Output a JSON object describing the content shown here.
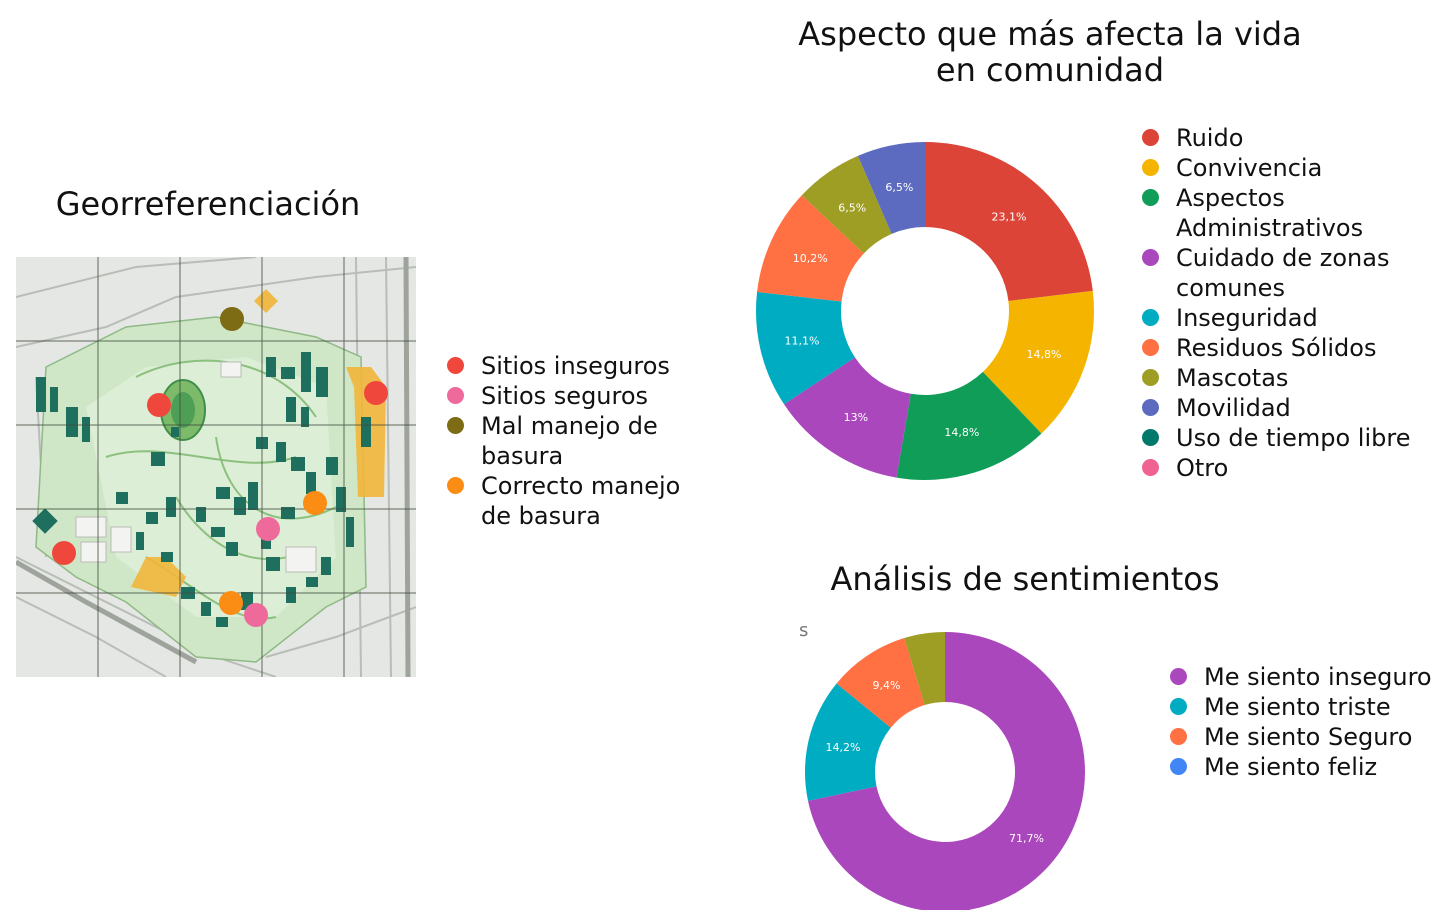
{
  "geo": {
    "title": "Georreferenciación",
    "legend": [
      {
        "label": "Sitios inseguros",
        "color": "#f0473c"
      },
      {
        "label": "Sitios seguros",
        "color": "#ee6a9a"
      },
      {
        "label": "Mal manejo de basura",
        "color": "#7e6c14"
      },
      {
        "label": "Correcto manejo de basura",
        "color": "#fb8c14"
      }
    ]
  },
  "stray_mark": "s",
  "chart_data": [
    {
      "type": "pie",
      "title": "Aspecto que más afecta la vida en comunidad",
      "legend_position": "right",
      "series": [
        {
          "name": "Ruido",
          "value": 23.1,
          "label": "23,1%",
          "color": "#db4437"
        },
        {
          "name": "Convivencia",
          "value": 14.8,
          "label": "14,8%",
          "color": "#f4b400"
        },
        {
          "name": "Aspectos Administrativos",
          "value": 14.8,
          "label": "14,8%",
          "color": "#0f9d58"
        },
        {
          "name": "Cuidado de zonas comunes",
          "value": 13,
          "label": "13%",
          "color": "#ab47bc"
        },
        {
          "name": "Inseguridad",
          "value": 11.1,
          "label": "11,1%",
          "color": "#00acc1"
        },
        {
          "name": "Residuos Sólidos",
          "value": 10.2,
          "label": "10,2%",
          "color": "#ff7043"
        },
        {
          "name": "Mascotas",
          "value": 6.5,
          "label": "6,5%",
          "color": "#9e9d24"
        },
        {
          "name": "Movilidad",
          "value": 6.5,
          "label": "6,5%",
          "color": "#5c6bc0"
        },
        {
          "name": "Uso de tiempo libre",
          "value": 0,
          "label": "",
          "color": "#00796b"
        },
        {
          "name": "Otro",
          "value": 0,
          "label": "",
          "color": "#f06292"
        }
      ]
    },
    {
      "type": "pie",
      "title": "Análisis de sentimientos",
      "legend_position": "right",
      "series": [
        {
          "name": "Me siento inseguro",
          "value": 71.7,
          "label": "71,7%",
          "color": "#ab47bc"
        },
        {
          "name": "Me siento triste",
          "value": 14.2,
          "label": "14,2%",
          "color": "#00acc1"
        },
        {
          "name": "Me siento Seguro",
          "value": 9.4,
          "label": "9,4%",
          "color": "#ff7043"
        },
        {
          "name": "Me siento feliz",
          "value": 4.7,
          "label": "",
          "color": "#9e9d24"
        }
      ],
      "legend": [
        {
          "label": "Me siento inseguro",
          "color": "#ab47bc"
        },
        {
          "label": "Me siento triste",
          "color": "#00acc1"
        },
        {
          "label": "Me siento Seguro",
          "color": "#ff7043"
        },
        {
          "label": "Me siento feliz",
          "color": "#4285f4"
        }
      ]
    }
  ]
}
